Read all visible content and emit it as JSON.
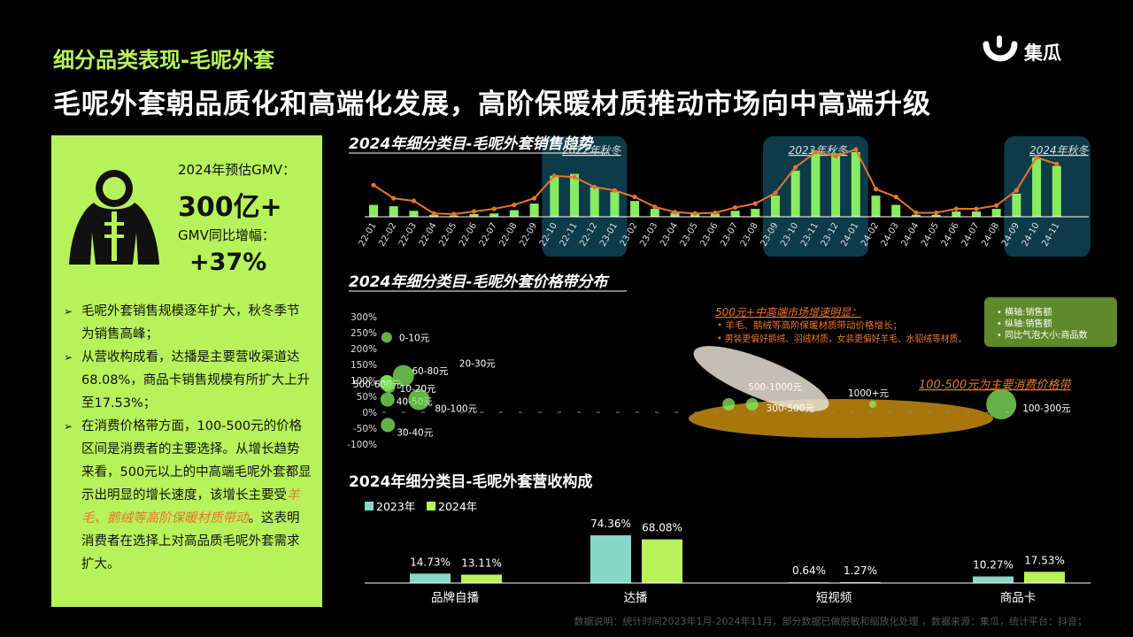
{
  "header": {
    "section_title": "细分品类表现-毛呢外套",
    "headline": "毛呢外套朝品质化和高端化发展，高阶保暖材质推动市场向中高端升级",
    "logo_text": "集瓜"
  },
  "left_panel": {
    "gmv_label": "2024年预估GMV：",
    "gmv_value": "300亿+",
    "yoy_label": "GMV同比增幅：",
    "yoy_value": "+37%",
    "bullets": [
      {
        "parts": [
          {
            "text": "毛呢外套销售规模逐年扩大，秋冬季节为销售高峰；",
            "hl": false
          }
        ]
      },
      {
        "parts": [
          {
            "text": "从营收构成看，达播是主要营收渠道达68.08%，商品卡销售规模有所扩大上升至17.53%；",
            "hl": false
          }
        ]
      },
      {
        "parts": [
          {
            "text": "在消费价格带方面，100-500元的价格区间是消费者的主要选择。从增长趋势来看，500元以上的中高端毛呢外套都显示出明显的增长速度，该增长主要受",
            "hl": false
          },
          {
            "text": "羊毛、鹅绒等高阶保暖材质带动",
            "hl": true
          },
          {
            "text": "。这表明消费者在选择上对高品质毛呢外套需求扩大。",
            "hl": false
          }
        ]
      }
    ],
    "colors": {
      "panel": "#b7f25a",
      "highlight": "#e8742c"
    }
  },
  "footer_note": "数据说明：统计时间2023年1月-2024年11月，部分数据已做脱敏和缩放化处理 ，数据来源：集瓜，统计平台：抖音；",
  "chart_data": [
    {
      "type": "bar",
      "title": "2024年细分类目-毛呢外套销售趋势",
      "categories": [
        "22-01",
        "22-02",
        "22-03",
        "22-04",
        "22-05",
        "22-06",
        "22-07",
        "22-08",
        "22-09",
        "22-10",
        "22-11",
        "22-12",
        "23-01",
        "23-02",
        "23-03",
        "23-04",
        "23-05",
        "23-06",
        "23-07",
        "23-08",
        "23-09",
        "23-10",
        "23-11",
        "23-12",
        "24-01",
        "24-02",
        "24-03",
        "24-04",
        "24-05",
        "24-06",
        "24-07",
        "24-08",
        "24-09",
        "24-10",
        "24-11"
      ],
      "series": [
        {
          "kind": "bar",
          "values": [
            18,
            16,
            9,
            3,
            2,
            4,
            5,
            10,
            20,
            62,
            65,
            45,
            38,
            24,
            12,
            6,
            4,
            5,
            9,
            12,
            32,
            70,
            100,
            96,
            98,
            32,
            18,
            3,
            3,
            8,
            8,
            12,
            35,
            90,
            77
          ]
        },
        {
          "kind": "line",
          "values": [
            48,
            28,
            24,
            5,
            4,
            8,
            12,
            18,
            28,
            62,
            60,
            45,
            40,
            30,
            15,
            7,
            5,
            6,
            14,
            20,
            36,
            75,
            98,
            92,
            102,
            42,
            30,
            6,
            6,
            12,
            12,
            17,
            40,
            90,
            80
          ]
        }
      ],
      "ylim": [
        0,
        110
      ],
      "annotations": [
        {
          "text": "2022年秋冬",
          "start": "22-10",
          "end": "23-01"
        },
        {
          "text": "2023年秋冬",
          "start": "23-09",
          "end": "24-01"
        },
        {
          "text": "2024年秋冬",
          "start": "24-09",
          "end": "24-11"
        }
      ],
      "colors": {
        "bar": "#86ed5f",
        "line": "#e8742c",
        "highlight_box": "#0d3b4a"
      }
    },
    {
      "type": "scatter",
      "title": "2024年细分类目-毛呢外套价格带分布",
      "yticks": [
        "300%",
        "250%",
        "200%",
        "150%",
        "100%",
        "50%",
        "0%",
        "-50%",
        "-100%"
      ],
      "ylim": [
        -100,
        300
      ],
      "points": [
        {
          "label": "0-10元",
          "x": 0.2,
          "y": 235,
          "size": 6
        },
        {
          "label": "60-80元",
          "x": 0.3,
          "y": 92,
          "size": 9
        },
        {
          "label": "500-600元",
          "x": 0.2,
          "y": 100,
          "size": 6
        },
        {
          "label": "20-30元",
          "x": 4.5,
          "y": 115,
          "size": 12
        },
        {
          "label": "10-20元",
          "x": 0.8,
          "y": 80,
          "size": 7
        },
        {
          "label": "40-50元",
          "x": 0.4,
          "y": 40,
          "size": 8
        },
        {
          "label": "80-100元",
          "x": 8.5,
          "y": 40,
          "size": 12
        },
        {
          "label": "30-40元",
          "x": 0.5,
          "y": -40,
          "size": 8
        },
        {
          "label": "500-1000元",
          "x": 88,
          "y": 25,
          "size": 7
        },
        {
          "label": "300-500元",
          "x": 94,
          "y": 25,
          "size": 7
        },
        {
          "label": "1000+元",
          "x": 125,
          "y": 25,
          "size": 4
        },
        {
          "label": "100-300元",
          "x": 158,
          "y": 25,
          "size": 17
        }
      ],
      "annotations": {
        "title": "500元+中高端市场增速明显：",
        "items": [
          "羊毛、鹅绒等高阶保暖材质带动价格增长；",
          "男装更偏好鹅绒、羽绒材质，女装更偏好羊毛、水貂绒等材质。"
        ],
        "main_band": "100-500元为主要消费价格带"
      },
      "legend": [
        "横轴:销售额",
        "纵轴:销售额",
        "同比气泡大小:商品数"
      ],
      "colors": {
        "bubble": "#86ed5f",
        "annot": "#e8742c",
        "legend_bg": "#5f8a2b",
        "band": "#b07d0e"
      }
    },
    {
      "type": "bar",
      "title": "2024年细分类目-毛呢外套营收构成",
      "categories": [
        "品牌自播",
        "达播",
        "短视频",
        "商品卡"
      ],
      "series": [
        {
          "name": "2023年",
          "values": [
            14.73,
            74.36,
            0.64,
            10.27
          ],
          "labels": [
            "14.73%",
            "74.36%",
            "0.64%",
            "10.27%"
          ]
        },
        {
          "name": "2024年",
          "values": [
            13.11,
            68.08,
            1.27,
            17.53
          ],
          "labels": [
            "13.11%",
            "68.08%",
            "1.27%",
            "17.53%"
          ]
        }
      ],
      "ylim": [
        0,
        80
      ],
      "colors": {
        "2023": "#86d9c8",
        "2024": "#b7f25a"
      }
    }
  ]
}
